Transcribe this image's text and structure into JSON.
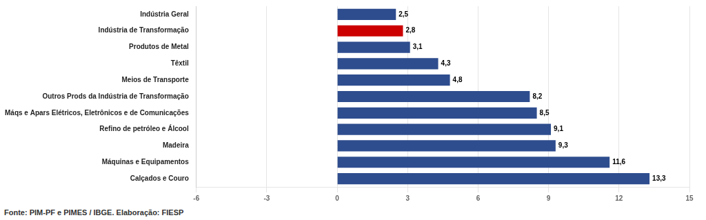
{
  "chart_data": {
    "type": "bar",
    "orientation": "horizontal",
    "categories": [
      "Calçados e Couro",
      "Máquinas e Equipamentos",
      "Madeira",
      "Refino de petróleo e Álcool",
      "Máqs e Apars Elétricos, Eletrônicos e de Comunicações",
      "Outros Prods da Indústria de Transformação",
      "Meios de Transporte",
      "Têxtil",
      "Produtos de Metal",
      "Indústria de Transformação",
      "Indústria Geral"
    ],
    "values": [
      13.3,
      11.6,
      9.3,
      9.1,
      8.5,
      8.2,
      4.8,
      4.3,
      3.1,
      2.8,
      2.5
    ],
    "value_labels": [
      "13,3",
      "11,6",
      "9,3",
      "9,1",
      "8,5",
      "8,2",
      "4,8",
      "4,3",
      "3,1",
      "2,8",
      "2,5"
    ],
    "data_labels": true,
    "colors": [
      "#2E4D8E",
      "#2E4D8E",
      "#2E4D8E",
      "#2E4D8E",
      "#2E4D8E",
      "#2E4D8E",
      "#2E4D8E",
      "#2E4D8E",
      "#2E4D8E",
      "#CC0000",
      "#2E4D8E"
    ],
    "xlim": [
      -6,
      15
    ],
    "xticks": [
      -6,
      -3,
      0,
      3,
      6,
      9,
      12,
      15
    ],
    "grid": true,
    "annotations": [
      "Fonte: PIM-PF e PIMES / IBGE. Elaboração: FIESP"
    ]
  }
}
